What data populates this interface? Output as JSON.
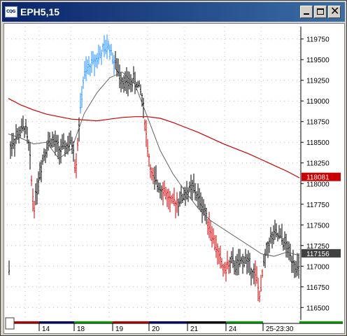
{
  "window": {
    "title": "EPH5,15",
    "app_icon_label": "CQG"
  },
  "chart_data": {
    "type": "ohlc",
    "title": "EPH5,15",
    "y_axis_side": "right",
    "ylim": [
      11635,
      11990
    ],
    "y_ticks": [
      11975,
      11950,
      11925,
      11900,
      11875,
      11850,
      11825,
      11800,
      11775,
      11750,
      11725,
      11700,
      11675,
      11650
    ],
    "y_tick_labels": [
      "119750",
      "119500",
      "119250",
      "119000",
      "118750",
      "118500",
      "118250",
      "118000",
      "117750",
      "117500",
      "117250",
      "117000",
      "116750",
      "116500"
    ],
    "x_labels": [
      "14",
      "18",
      "19",
      "20",
      "21",
      "24",
      "25-23:30"
    ],
    "session_band_colors": [
      "#cc0000",
      "#000080",
      "#00aa00",
      "#cc0000",
      "#000080",
      "#000000",
      "#00aa00"
    ],
    "grid": "dotted",
    "series": [
      {
        "name": "",
        "kind": "price-bars",
        "colors": [
          "#1e90ff",
          "#000000",
          "#cc0000"
        ]
      },
      {
        "name": "",
        "kind": "moving-average",
        "color": "#cc0000",
        "values": [
          11903,
          11895,
          11889,
          11884,
          11881,
          11878,
          11877,
          11876,
          11878,
          11880,
          11881,
          11881,
          11879,
          11874,
          11868,
          11862,
          11855,
          11848,
          11842,
          11836,
          11829,
          11822,
          11815,
          11807
        ]
      },
      {
        "name": "",
        "kind": "moving-average",
        "color": "#555555",
        "values": [
          11860,
          11855,
          11848,
          11850,
          11830,
          11842,
          11885,
          11910,
          11928,
          11935,
          11920,
          11880,
          11840,
          11812,
          11790,
          11770,
          11755,
          11745,
          11735,
          11725,
          11715,
          11712,
          11717,
          11713
        ]
      }
    ],
    "price_markers": [
      {
        "value": "118081",
        "y": 11808.1,
        "color": "#cc0000"
      },
      {
        "value": "117156",
        "y": 11715.6,
        "color": "#404040"
      }
    ]
  }
}
